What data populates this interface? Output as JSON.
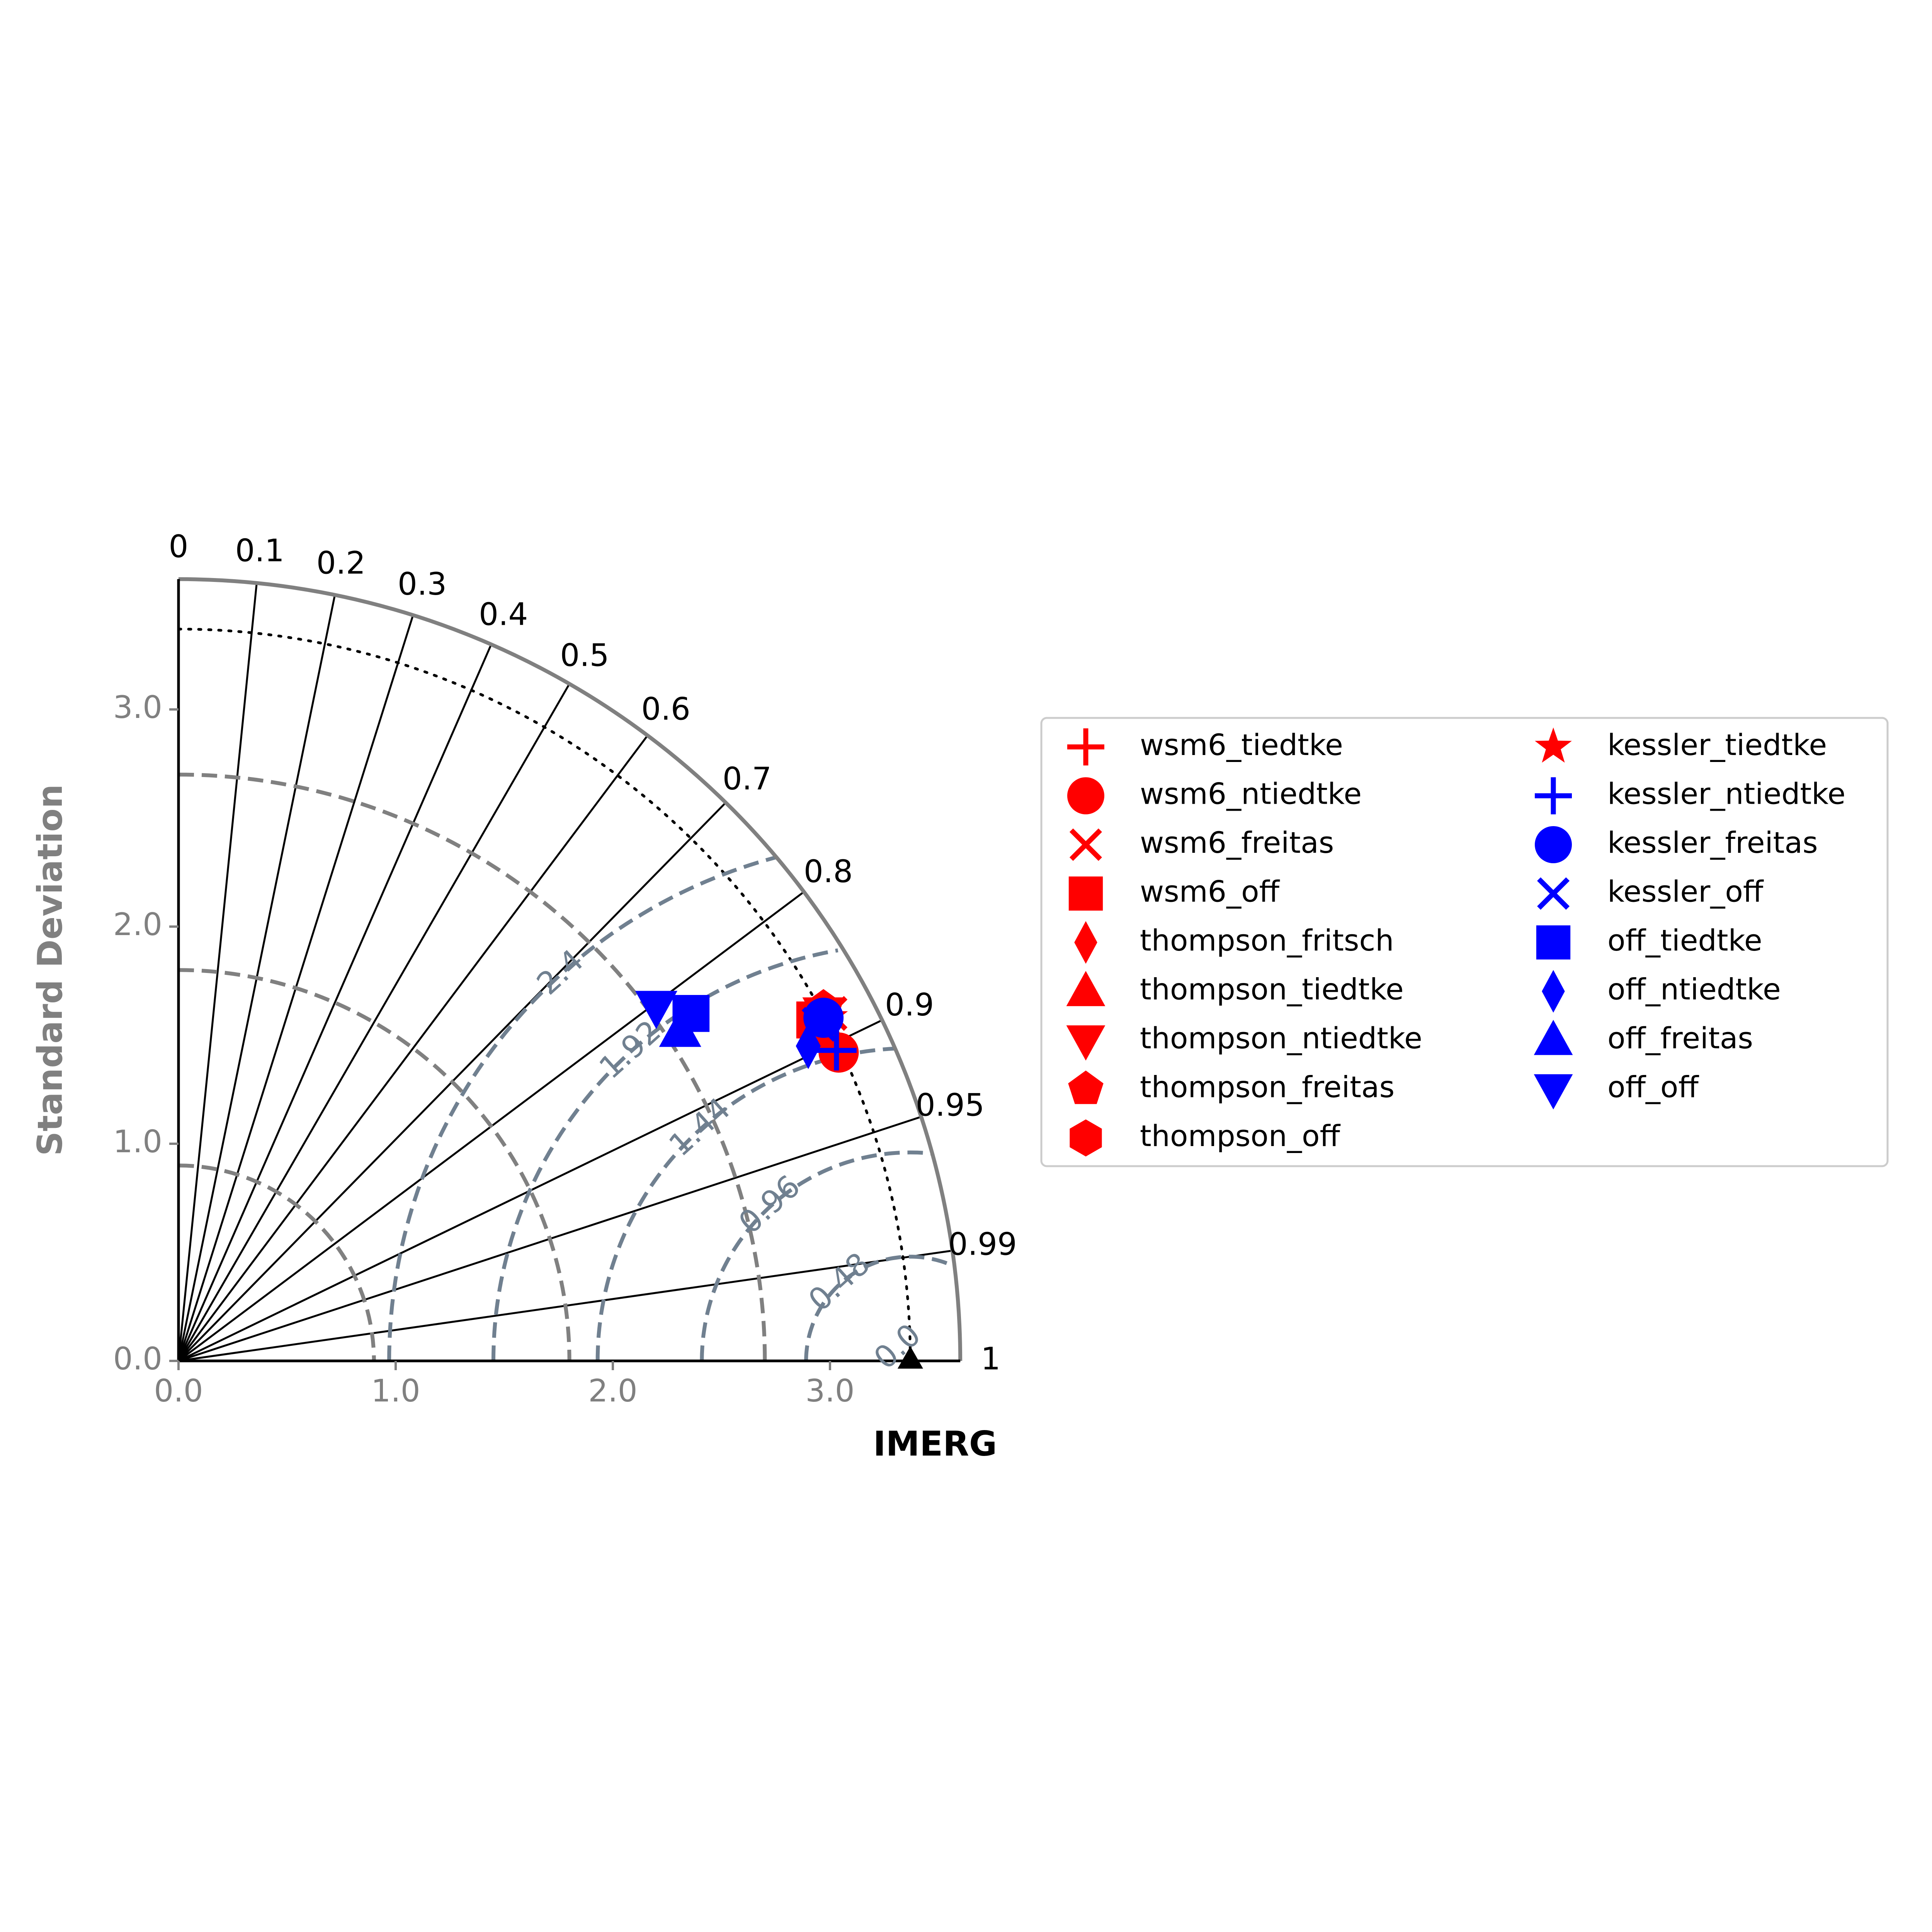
{
  "chart_data": {
    "type": "scatter",
    "subtype": "taylor-diagram",
    "ylabel": "Standard Deviation",
    "xlabel": "IMERG",
    "std_range": [
      0,
      3.6
    ],
    "std_ticks": [
      "0.0",
      "1.0",
      "2.0",
      "3.0"
    ],
    "std_tick_values": [
      0,
      1,
      2,
      3
    ],
    "correlation_ticks": [
      "0",
      "0.1",
      "0.2",
      "0.3",
      "0.4",
      "0.5",
      "0.6",
      "0.7",
      "0.8",
      "0.9",
      "0.95",
      "0.99",
      "1"
    ],
    "correlation_values": [
      0,
      0.1,
      0.2,
      0.3,
      0.4,
      0.5,
      0.6,
      0.7,
      0.8,
      0.9,
      0.95,
      0.99,
      1
    ],
    "reference": {
      "name": "IMERG",
      "std": 3.37
    },
    "std_contours": [
      0.9,
      1.8,
      2.7
    ],
    "rms_contours": [
      0.48,
      0.96,
      1.44,
      1.92,
      2.4
    ],
    "rms_contour_labels": [
      "0.0",
      "0.48",
      "0.96",
      "1.44",
      "1.92",
      "2.4"
    ],
    "legend_position": "right",
    "colors": {
      "red": "#ff0000",
      "blue": "#0000ff",
      "frame": "#808080",
      "rms": "#708090",
      "axis_ticks": "#808080"
    },
    "series": [
      {
        "name": "wsm6_tiedtke",
        "marker": "plus",
        "color": "red",
        "x": 3.01,
        "y": 1.44
      },
      {
        "name": "wsm6_ntiedtke",
        "marker": "circle",
        "color": "red",
        "x": 3.04,
        "y": 1.42
      },
      {
        "name": "wsm6_freitas",
        "marker": "x",
        "color": "red",
        "x": 3.0,
        "y": 1.6
      },
      {
        "name": "wsm6_off",
        "marker": "square",
        "color": "red",
        "x": 2.93,
        "y": 1.57
      },
      {
        "name": "thompson_fritsch",
        "marker": "diamond",
        "color": "red",
        "x": 2.99,
        "y": 1.55
      },
      {
        "name": "thompson_tiedtke",
        "marker": "triangle-up",
        "color": "red",
        "x": 2.98,
        "y": 1.5
      },
      {
        "name": "thompson_ntiedtke",
        "marker": "triangle-down",
        "color": "red",
        "x": 2.97,
        "y": 1.6
      },
      {
        "name": "thompson_freitas",
        "marker": "pentagon",
        "color": "red",
        "x": 2.97,
        "y": 1.62
      },
      {
        "name": "thompson_off",
        "marker": "hexagon",
        "color": "red",
        "x": 2.96,
        "y": 1.59
      },
      {
        "name": "kessler_tiedtke",
        "marker": "star",
        "color": "red",
        "x": 2.99,
        "y": 1.58
      },
      {
        "name": "kessler_ntiedtke",
        "marker": "plus",
        "color": "blue",
        "x": 3.03,
        "y": 1.43
      },
      {
        "name": "kessler_freitas",
        "marker": "circle",
        "color": "blue",
        "x": 2.97,
        "y": 1.58
      },
      {
        "name": "kessler_off",
        "marker": "x",
        "color": "blue",
        "x": 2.95,
        "y": 1.55
      },
      {
        "name": "off_tiedtke",
        "marker": "square",
        "color": "blue",
        "x": 2.36,
        "y": 1.6
      },
      {
        "name": "off_ntiedtke",
        "marker": "diamond",
        "color": "blue",
        "x": 2.9,
        "y": 1.45
      },
      {
        "name": "off_freitas",
        "marker": "triangle-up",
        "color": "blue",
        "x": 2.31,
        "y": 1.52
      },
      {
        "name": "off_off",
        "marker": "triangle-down",
        "color": "blue",
        "x": 2.2,
        "y": 1.63
      }
    ]
  }
}
